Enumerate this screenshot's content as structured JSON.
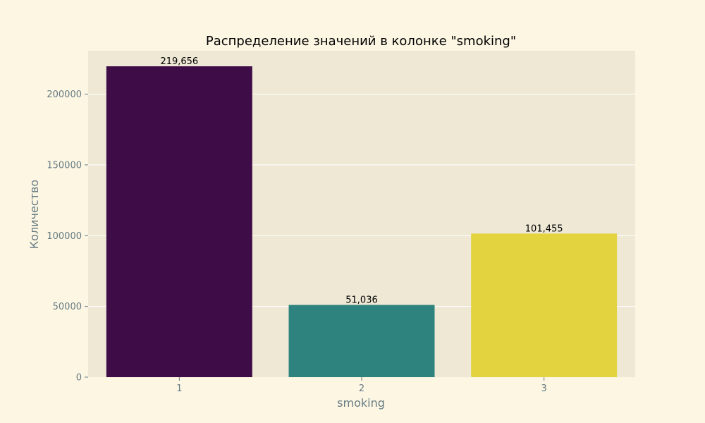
{
  "chart_data": {
    "type": "bar",
    "title": "Распределение значений в колонке \"smoking\"",
    "xlabel": "smoking",
    "ylabel": "Количество",
    "categories": [
      "1",
      "2",
      "3"
    ],
    "values": [
      219656,
      51036,
      101455
    ],
    "value_labels": [
      "219,656",
      "51,036",
      "101,455"
    ],
    "ylim": [
      0,
      230639
    ],
    "yticks": [
      0,
      50000,
      100000,
      150000,
      200000
    ],
    "ytick_labels": [
      "0",
      "50000",
      "100000",
      "150000",
      "200000"
    ],
    "bar_colors": [
      "#3e0c47",
      "#2e837e",
      "#e2d33f"
    ],
    "plot_background": "#eee8d5",
    "figure_background": "#fdf6e3",
    "grid": true,
    "grid_axis": "y",
    "grid_color": "#ffffff"
  }
}
